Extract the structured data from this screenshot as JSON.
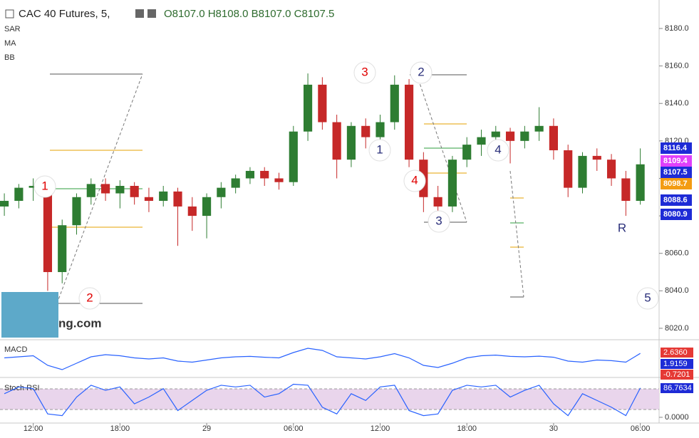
{
  "header": {
    "symbol": "CAC 40 Futures, 5,",
    "ohlc": "O8107.0 H8108.0 B8107.0 C8107.5"
  },
  "indicators": [
    "SAR",
    "MA",
    "BB"
  ],
  "watermark": "ng.com",
  "chart_data": [
    {
      "type": "candlestick",
      "x": [
        0,
        1,
        2,
        3,
        4,
        5,
        6,
        7,
        8,
        9,
        10,
        11,
        12,
        13,
        14,
        15,
        16,
        17,
        18,
        19,
        20,
        21,
        22,
        23,
        24,
        25,
        26,
        27,
        28,
        29,
        30,
        31,
        32,
        33,
        34,
        35,
        36,
        37,
        38,
        39,
        40,
        41,
        42,
        43,
        44
      ],
      "open": [
        8085,
        8088,
        8095,
        8096,
        8050,
        8075,
        8090,
        8097,
        8092,
        8096,
        8090,
        8088,
        8093,
        8085,
        8080,
        8090,
        8095,
        8100,
        8104,
        8100,
        8098,
        8125,
        8150,
        8130,
        8110,
        8128,
        8122,
        8130,
        8150,
        8110,
        8090,
        8085,
        8110,
        8118,
        8122,
        8125,
        8120,
        8125,
        8128,
        8115,
        8095,
        8112,
        8110,
        8100,
        8088
      ],
      "high": [
        8092,
        8097,
        8100,
        8098,
        8078,
        8092,
        8100,
        8100,
        8099,
        8098,
        8095,
        8096,
        8095,
        8090,
        8092,
        8098,
        8102,
        8106,
        8106,
        8103,
        8128,
        8156,
        8154,
        8134,
        8130,
        8132,
        8134,
        8155,
        8153,
        8114,
        8096,
        8112,
        8122,
        8126,
        8128,
        8127,
        8128,
        8138,
        8132,
        8118,
        8114,
        8116,
        8113,
        8104,
        8116
      ],
      "low": [
        8080,
        8084,
        8088,
        8040,
        8044,
        8070,
        8086,
        8088,
        8084,
        8086,
        8082,
        8085,
        8064,
        8072,
        8068,
        8084,
        8092,
        8097,
        8096,
        8094,
        8096,
        8120,
        8126,
        8100,
        8106,
        8116,
        8118,
        8126,
        8106,
        8082,
        8078,
        8082,
        8106,
        8112,
        8116,
        8108,
        8116,
        8120,
        8110,
        8090,
        8092,
        8104,
        8096,
        8080,
        8086
      ],
      "close": [
        8088,
        8095,
        8096,
        8050,
        8075,
        8090,
        8097,
        8092,
        8096,
        8090,
        8088,
        8093,
        8085,
        8080,
        8090,
        8095,
        8100,
        8104,
        8100,
        8098,
        8125,
        8150,
        8130,
        8110,
        8128,
        8122,
        8130,
        8150,
        8110,
        8090,
        8085,
        8110,
        8118,
        8122,
        8125,
        8120,
        8125,
        8128,
        8115,
        8095,
        8112,
        8110,
        8100,
        8088,
        8107.5
      ],
      "xlim": [
        -0.3,
        45.3
      ],
      "xticks": [
        {
          "value": 2,
          "label": "12:00"
        },
        {
          "value": 8,
          "label": "18:00"
        },
        {
          "value": 14,
          "label": "29"
        },
        {
          "value": 20,
          "label": "06:00"
        },
        {
          "value": 26,
          "label": "12:00"
        },
        {
          "value": 32,
          "label": "18:00"
        },
        {
          "value": 38,
          "label": "30"
        },
        {
          "value": 44,
          "label": "06:00"
        }
      ],
      "ylim": [
        8013.9,
        8195.2
      ],
      "yticks": [
        {
          "value": 8020,
          "label": "8020.0"
        },
        {
          "value": 8040,
          "label": "8040.0"
        },
        {
          "value": 8060,
          "label": "8060.0"
        },
        {
          "value": 8080,
          "label": "8080.0"
        },
        {
          "value": 8100,
          "label": "8100.0"
        },
        {
          "value": 8120,
          "label": "8120.0"
        },
        {
          "value": 8140,
          "label": "8140.0"
        },
        {
          "value": 8160,
          "label": "8160.0"
        },
        {
          "value": 8180,
          "label": "8180.0"
        }
      ],
      "up_color": "#2e7d32",
      "down_color": "#c62828",
      "price_tags": [
        {
          "value": 8116.4,
          "color": "#1e2bd6"
        },
        {
          "value": 8109.4,
          "color": "#e040fb"
        },
        {
          "value": 8107.5,
          "color": "#1e2bd6"
        },
        {
          "value": 8098.7,
          "color": "#f39c12"
        },
        {
          "value": 8088.6,
          "color": "#1e2bd6"
        },
        {
          "value": 8080.9,
          "color": "#1e2bd6"
        }
      ],
      "wave_labels": [
        {
          "text": "1",
          "color": "#e00000"
        },
        {
          "text": "2",
          "color": "#e00000"
        },
        {
          "text": "3",
          "color": "#e00000"
        },
        {
          "text": "2",
          "color": "#2a2f7a"
        },
        {
          "text": "1",
          "color": "#2a2f7a"
        },
        {
          "text": "4",
          "color": "#e00000"
        },
        {
          "text": "3",
          "color": "#2a2f7a"
        },
        {
          "text": "4",
          "color": "#2a2f7a"
        },
        {
          "text": "5",
          "color": "#2a2f7a"
        },
        {
          "text": "R",
          "color": "#2a2f7a"
        }
      ]
    },
    {
      "type": "line",
      "name": "MACD",
      "color": "#2962ff",
      "values": [
        0.5,
        1,
        1.5,
        -3,
        -5,
        -2,
        1,
        2,
        1.5,
        0.5,
        0,
        0.5,
        -1,
        -1.5,
        -0.5,
        0.5,
        1,
        1.2,
        0.8,
        0.5,
        3,
        5,
        4,
        1,
        0.5,
        0,
        1,
        2.5,
        0.5,
        -3,
        -4,
        -2,
        0.5,
        1.5,
        1.8,
        1.2,
        1,
        1.3,
        0.8,
        -1,
        -1.5,
        -0.5,
        -0.8,
        -1.5,
        2.6
      ],
      "ylim": [
        -8,
        8
      ],
      "tags": [
        {
          "value": 2.636,
          "label": "2.6360",
          "color": "#e53935"
        },
        {
          "value": 1.9159,
          "label": "1.9159",
          "color": "#1e2bd6"
        },
        {
          "value": -0.7201,
          "label": "-0.7201",
          "color": "#e53935"
        }
      ]
    },
    {
      "type": "line",
      "name": "Stoch RSI",
      "color": "#2962ff",
      "values": [
        70,
        90,
        85,
        10,
        5,
        60,
        95,
        80,
        90,
        40,
        60,
        85,
        20,
        50,
        80,
        95,
        90,
        95,
        60,
        70,
        98,
        95,
        30,
        10,
        70,
        50,
        90,
        95,
        20,
        5,
        10,
        80,
        95,
        90,
        95,
        60,
        80,
        95,
        40,
        5,
        70,
        50,
        30,
        5,
        87
      ],
      "ylim": [
        -17,
        116
      ],
      "yticks": [
        {
          "value": 0,
          "label": "0.0000"
        }
      ],
      "tags": [
        {
          "value": 86.7634,
          "color": "#1e2bd6"
        }
      ]
    }
  ]
}
